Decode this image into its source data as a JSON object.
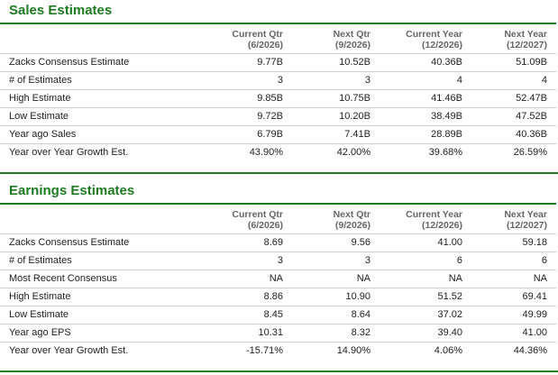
{
  "sales": {
    "title": "Sales Estimates",
    "headers": [
      {
        "l1": "Current Qtr",
        "l2": "(6/2026)"
      },
      {
        "l1": "Next Qtr",
        "l2": "(9/2026)"
      },
      {
        "l1": "Current Year",
        "l2": "(12/2026)"
      },
      {
        "l1": "Next Year",
        "l2": "(12/2027)"
      }
    ],
    "rows": [
      {
        "label": "Zacks Consensus Estimate",
        "values": [
          "9.77B",
          "10.52B",
          "40.36B",
          "51.09B"
        ]
      },
      {
        "label": "# of Estimates",
        "values": [
          "3",
          "3",
          "4",
          "4"
        ]
      },
      {
        "label": "High Estimate",
        "values": [
          "9.85B",
          "10.75B",
          "41.46B",
          "52.47B"
        ]
      },
      {
        "label": "Low Estimate",
        "values": [
          "9.72B",
          "10.20B",
          "38.49B",
          "47.52B"
        ]
      },
      {
        "label": "Year ago Sales",
        "values": [
          "6.79B",
          "7.41B",
          "28.89B",
          "40.36B"
        ]
      },
      {
        "label": "Year over Year Growth Est.",
        "values": [
          "43.90%",
          "42.00%",
          "39.68%",
          "26.59%"
        ]
      }
    ]
  },
  "earnings": {
    "title": "Earnings Estimates",
    "headers": [
      {
        "l1": "Current Qtr",
        "l2": "(6/2026)"
      },
      {
        "l1": "Next Qtr",
        "l2": "(9/2026)"
      },
      {
        "l1": "Current Year",
        "l2": "(12/2026)"
      },
      {
        "l1": "Next Year",
        "l2": "(12/2027)"
      }
    ],
    "rows": [
      {
        "label": "Zacks Consensus Estimate",
        "values": [
          "8.69",
          "9.56",
          "41.00",
          "59.18"
        ]
      },
      {
        "label": "# of Estimates",
        "values": [
          "3",
          "3",
          "6",
          "6"
        ]
      },
      {
        "label": "Most Recent Consensus",
        "values": [
          "NA",
          "NA",
          "NA",
          "NA"
        ]
      },
      {
        "label": "High Estimate",
        "values": [
          "8.86",
          "10.90",
          "51.52",
          "69.41"
        ]
      },
      {
        "label": "Low Estimate",
        "values": [
          "8.45",
          "8.64",
          "37.02",
          "49.99"
        ]
      },
      {
        "label": "Year ago EPS",
        "values": [
          "10.31",
          "8.32",
          "39.40",
          "41.00"
        ]
      },
      {
        "label": "Year over Year Growth Est.",
        "values": [
          "-15.71%",
          "14.90%",
          "4.06%",
          "44.36%"
        ]
      }
    ]
  },
  "colors": {
    "accent": "#1e7b21",
    "grid": "#cfcfcf"
  }
}
